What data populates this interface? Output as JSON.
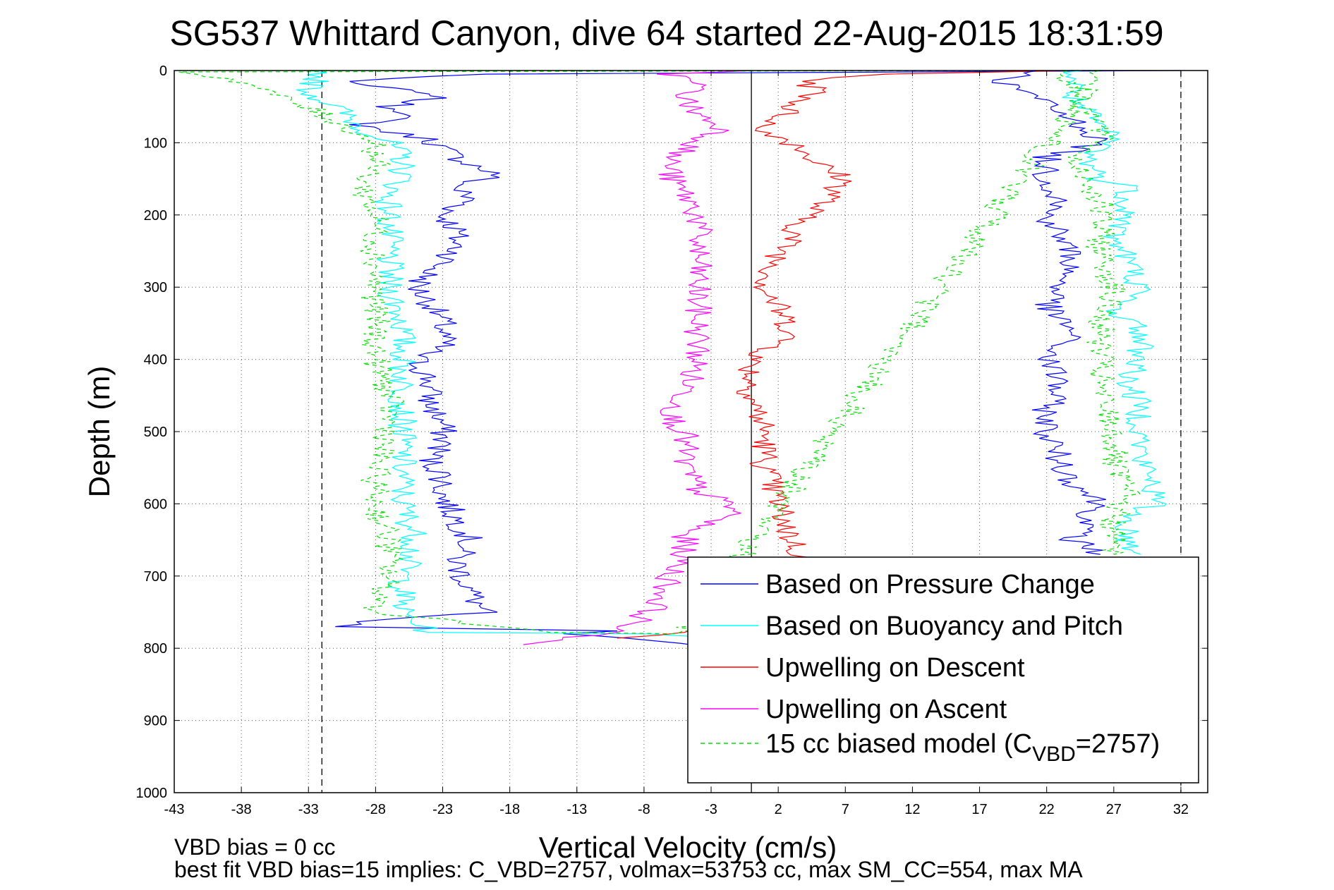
{
  "chart_data": {
    "type": "line",
    "title": "SG537 Whittard Canyon, dive 64 started 22-Aug-2015 18:31:59",
    "xlabel": "Vertical Velocity (cm/s)",
    "ylabel": "Depth (m)",
    "xlim": [
      -43,
      34
    ],
    "ylim": [
      1000,
      0
    ],
    "y_reversed": true,
    "xticks": [
      -43,
      -38,
      -33,
      -28,
      -23,
      -18,
      -13,
      -8,
      -3,
      2,
      7,
      12,
      17,
      22,
      27,
      32
    ],
    "yticks": [
      0,
      100,
      200,
      300,
      400,
      500,
      600,
      700,
      800,
      900,
      1000
    ],
    "grid": true,
    "reference_lines": {
      "dashed": [
        -32,
        32
      ],
      "solid": [
        0
      ]
    },
    "legend_position": "bottom-right",
    "legend": [
      {
        "label": "Based on Pressure Change",
        "color": "#0000ff",
        "dash": "solid"
      },
      {
        "label": "Based on Buoyancy and Pitch",
        "color": "#00ffff",
        "dash": "solid"
      },
      {
        "label": "Upwelling on Descent",
        "color": "#ff0000",
        "dash": "solid"
      },
      {
        "label": "Upwelling on Ascent",
        "color": "#ff00ff",
        "dash": "solid"
      },
      {
        "label": "15 cc biased model (C",
        "sub": "VBD",
        "tail": "=2757)",
        "color": "#00dd00",
        "dash": "dashed"
      }
    ],
    "series": [
      {
        "color": "#0000ff",
        "points": [
          [
            32,
            0
          ],
          [
            -20,
            5
          ],
          [
            -31,
            15
          ],
          [
            -25,
            30
          ],
          [
            -23,
            35
          ],
          [
            -27,
            50
          ],
          [
            -25,
            60
          ],
          [
            -29,
            75
          ],
          [
            -27,
            85
          ],
          [
            -24,
            95
          ],
          [
            -22,
            120
          ],
          [
            -19,
            145
          ],
          [
            -22,
            160
          ],
          [
            -21,
            180
          ],
          [
            -23,
            200
          ],
          [
            -22,
            220
          ],
          [
            -22,
            250
          ],
          [
            -24,
            280
          ],
          [
            -25,
            300
          ],
          [
            -24,
            320
          ],
          [
            -23,
            350
          ],
          [
            -23,
            380
          ],
          [
            -25,
            400
          ],
          [
            -24,
            430
          ],
          [
            -24,
            460
          ],
          [
            -23,
            490
          ],
          [
            -23,
            520
          ],
          [
            -24,
            540
          ],
          [
            -23,
            560
          ],
          [
            -23,
            590
          ],
          [
            -22,
            620
          ],
          [
            -21,
            650
          ],
          [
            -22,
            680
          ],
          [
            -21,
            720
          ],
          [
            -20,
            750
          ],
          [
            -28,
            760
          ],
          [
            -31,
            770
          ],
          [
            -10,
            776
          ],
          [
            -14,
            780
          ],
          [
            -8,
            790
          ],
          [
            -2,
            800
          ]
        ]
      },
      {
        "color": "#00ffff",
        "points": [
          [
            -32,
            0
          ],
          [
            -33,
            30
          ],
          [
            -31,
            50
          ],
          [
            -29,
            80
          ],
          [
            -27,
            100
          ],
          [
            -26,
            120
          ],
          [
            -26,
            150
          ],
          [
            -27,
            170
          ],
          [
            -27,
            200
          ],
          [
            -27,
            250
          ],
          [
            -27,
            300
          ],
          [
            -26,
            350
          ],
          [
            -26,
            400
          ],
          [
            -26,
            450
          ],
          [
            -26,
            500
          ],
          [
            -26,
            550
          ],
          [
            -26,
            600
          ],
          [
            -25,
            650
          ],
          [
            -26,
            700
          ],
          [
            -26,
            750
          ],
          [
            -24,
            778
          ],
          [
            -8,
            780
          ],
          [
            -3,
            785
          ],
          [
            -2,
            790
          ]
        ]
      },
      {
        "color": "#ff0000",
        "points": [
          [
            24,
            0
          ],
          [
            10,
            5
          ],
          [
            6,
            10
          ],
          [
            4,
            15
          ],
          [
            5,
            30
          ],
          [
            3,
            50
          ],
          [
            2,
            70
          ],
          [
            0,
            80
          ],
          [
            2,
            90
          ],
          [
            4,
            110
          ],
          [
            5,
            130
          ],
          [
            7,
            150
          ],
          [
            6,
            175
          ],
          [
            4,
            200
          ],
          [
            3,
            230
          ],
          [
            2,
            260
          ],
          [
            1,
            300
          ],
          [
            2,
            330
          ],
          [
            3,
            360
          ],
          [
            2,
            380
          ],
          [
            0,
            400
          ],
          [
            0,
            450
          ],
          [
            1,
            500
          ],
          [
            1,
            550
          ],
          [
            2,
            600
          ],
          [
            3,
            650
          ],
          [
            4,
            680
          ],
          [
            3,
            700
          ],
          [
            2,
            730
          ],
          [
            0,
            760
          ],
          [
            -5,
            778
          ],
          [
            -7,
            782
          ],
          [
            -10,
            786
          ]
        ]
      },
      {
        "color": "#ff00ff",
        "points": [
          [
            0,
            0
          ],
          [
            -6,
            5
          ],
          [
            -4,
            20
          ],
          [
            -5,
            40
          ],
          [
            -4,
            60
          ],
          [
            -2,
            80
          ],
          [
            -4,
            100
          ],
          [
            -6,
            120
          ],
          [
            -6,
            150
          ],
          [
            -5,
            170
          ],
          [
            -4,
            200
          ],
          [
            -4,
            250
          ],
          [
            -4,
            300
          ],
          [
            -4,
            350
          ],
          [
            -4,
            400
          ],
          [
            -5,
            450
          ],
          [
            -6,
            480
          ],
          [
            -5,
            500
          ],
          [
            -5,
            550
          ],
          [
            -4,
            580
          ],
          [
            -1,
            610
          ],
          [
            -5,
            640
          ],
          [
            -5,
            670
          ],
          [
            -6,
            700
          ],
          [
            -7,
            740
          ],
          [
            -9,
            770
          ],
          [
            -13,
            785
          ],
          [
            -17,
            795
          ]
        ]
      },
      {
        "color": "#00dd00",
        "dash": "6,5",
        "points": [
          [
            25,
            0
          ],
          [
            -42,
            2
          ],
          [
            -38,
            15
          ],
          [
            -36,
            30
          ],
          [
            -34,
            45
          ],
          [
            -32,
            60
          ],
          [
            -30,
            80
          ],
          [
            -28,
            100
          ],
          [
            -28,
            130
          ],
          [
            -29,
            160
          ],
          [
            -28,
            200
          ],
          [
            -28,
            250
          ],
          [
            -28,
            300
          ],
          [
            -28,
            350
          ],
          [
            -28,
            400
          ],
          [
            -27,
            450
          ],
          [
            -27,
            500
          ],
          [
            -28,
            550
          ],
          [
            -28,
            600
          ],
          [
            -27,
            650
          ],
          [
            -27,
            700
          ],
          [
            -28,
            750
          ],
          [
            -15,
            778
          ],
          [
            -5,
            780
          ],
          [
            26,
            0
          ]
        ]
      },
      {
        "color": "#0000ff",
        "points": [
          [
            22,
            0
          ],
          [
            19,
            10
          ],
          [
            19,
            20
          ],
          [
            21,
            35
          ],
          [
            23,
            60
          ],
          [
            25,
            80
          ],
          [
            26,
            100
          ],
          [
            22,
            120
          ],
          [
            22,
            150
          ],
          [
            23,
            180
          ],
          [
            22,
            200
          ],
          [
            23,
            230
          ],
          [
            24,
            260
          ],
          [
            23,
            300
          ],
          [
            22,
            330
          ],
          [
            24,
            360
          ],
          [
            22,
            400
          ],
          [
            23,
            430
          ],
          [
            22,
            470
          ],
          [
            22,
            500
          ],
          [
            23,
            540
          ],
          [
            24,
            570
          ],
          [
            26,
            600
          ],
          [
            25,
            620
          ],
          [
            24,
            650
          ],
          [
            26,
            670
          ]
        ]
      },
      {
        "color": "#00ffff",
        "points": [
          [
            24,
            0
          ],
          [
            24,
            20
          ],
          [
            24,
            40
          ],
          [
            25,
            60
          ],
          [
            26,
            80
          ],
          [
            27,
            95
          ],
          [
            25,
            120
          ],
          [
            26,
            150
          ],
          [
            28,
            160
          ],
          [
            28,
            200
          ],
          [
            27,
            230
          ],
          [
            28,
            260
          ],
          [
            29,
            300
          ],
          [
            27,
            330
          ],
          [
            29,
            360
          ],
          [
            29,
            400
          ],
          [
            28,
            430
          ],
          [
            29,
            470
          ],
          [
            29,
            500
          ],
          [
            29,
            540
          ],
          [
            30,
            570
          ],
          [
            30,
            600
          ],
          [
            28,
            620
          ],
          [
            28,
            650
          ],
          [
            29,
            670
          ]
        ]
      },
      {
        "color": "#00dd00",
        "dash": "6,5",
        "points": [
          [
            23,
            0
          ],
          [
            24,
            20
          ],
          [
            25,
            50
          ],
          [
            26,
            80
          ],
          [
            26,
            100
          ],
          [
            24,
            120
          ],
          [
            25,
            150
          ],
          [
            26,
            180
          ],
          [
            26,
            200
          ],
          [
            26,
            250
          ],
          [
            27,
            300
          ],
          [
            26,
            350
          ],
          [
            26,
            400
          ],
          [
            26,
            450
          ],
          [
            27,
            500
          ],
          [
            27,
            550
          ],
          [
            28,
            580
          ],
          [
            27,
            620
          ],
          [
            27,
            650
          ],
          [
            27,
            670
          ]
        ]
      }
    ]
  },
  "footer": {
    "line1": "VBD bias = 0 cc",
    "line2": "best fit VBD bias=15 implies: C_VBD=2757, volmax=53753 cc, max SM_CC=554, max MA"
  }
}
